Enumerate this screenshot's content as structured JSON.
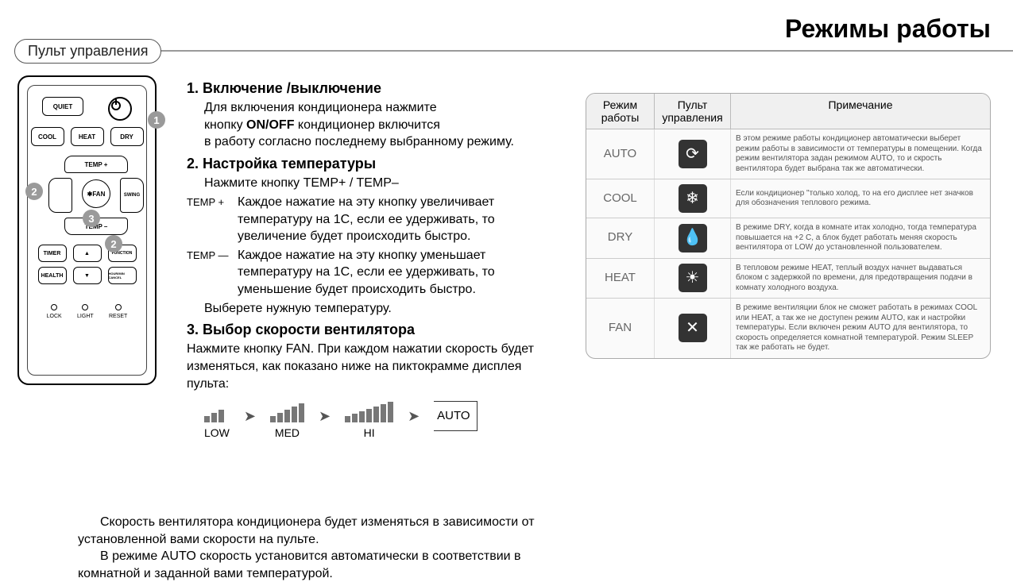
{
  "page_title": "Режимы работы",
  "section_label": "Пульт управления",
  "remote": {
    "buttons": {
      "quiet": "QUIET",
      "cool": "COOL",
      "heat": "HEAT",
      "dry": "DRY",
      "temp_plus": "TEMP +",
      "temp_minus": "TEMP –",
      "fan": "✱FAN",
      "swing": "SWING",
      "timer": "TIMER",
      "function": "FUNCTION",
      "health": "HEALTH",
      "cancel": "HOUR/MIN CANCEL",
      "up": "▲",
      "down": "▼"
    },
    "small": {
      "lock": "LOCK",
      "light": "LIGHT",
      "reset": "RESET"
    },
    "callouts": {
      "c1": "1",
      "c2a": "2",
      "c2b": "2",
      "c3": "3"
    }
  },
  "instructions": {
    "s1_title": "1.  Включение /выключение",
    "s1_l1": "Для включения кондиционера нажмите",
    "s1_l2a": "кнопку  ",
    "s1_onoff": "ON/OFF",
    "s1_l2b": "  кондиционер включится",
    "s1_l3": "в работу согласно последнему выбранному режиму.",
    "s2_title": "2.  Настройка температуры",
    "s2_l1": "Нажмите кнопку TEMP+ / TEMP–",
    "s2_plus_lbl": "TEMP +",
    "s2_plus_txt": "Каждое нажатие на эту кнопку увеличивает температуру на 1С, если ее удерживать, то увеличение будет происходить быстро.",
    "s2_minus_lbl": "TEMP —",
    "s2_minus_txt": "Каждое нажатие на эту кнопку уменьшает температуру на 1С, если ее удерживать, то уменьшение будет происходить быстро.",
    "s2_last": "Выберете нужную температуру.",
    "s3_title": "3.  Выбор скорости вентилятора",
    "s3_body": "Нажмите кнопку FAN. При каждом нажатии скорость будет изменяться, как показано ниже на пиктокрамме дисплея пульта:",
    "fan": {
      "low": "LOW",
      "med": "MED",
      "hi": "HI",
      "auto": "AUTO"
    },
    "bottom1": "Скорость вентилятора кондиционера будет изменяться в зависимости от установленной вами скорости на пульте.",
    "bottom2": "В режиме AUTO скорость установится автоматически в соответствии в комнатной и заданной вами температурой."
  },
  "mode_table": {
    "headers": {
      "c1": "Режим работы",
      "c2": "Пульт управления",
      "c3": "Примечание"
    },
    "rows": [
      {
        "mode": "AUTO",
        "icon": "⟳",
        "note": "В этом режиме работы кондиционер автоматически выберет режим работы в зависимости от температуры в помещении. Когда режим вентилятора задан режимом AUTO, то и скрость вентилятора будет выбрана так же автоматически."
      },
      {
        "mode": "COOL",
        "icon": "❄",
        "note": "Если кондиционер \"только холод, то на его дисплее нет значков для обозначения теплового режима."
      },
      {
        "mode": "DRY",
        "icon": "💧",
        "note": "В режиме DRY, когда в комнате итак холодно, тогда температура повышается на +2 С, а блок будет работать меняя скорость вентилятора от LOW до установленной пользователем."
      },
      {
        "mode": "HEAT",
        "icon": "☀",
        "note": "В тепловом режиме HEAT, теплый воздух начнет выдаваться блоком с задержкой по времени, для предотвращения подачи в комнату холодного воздуха."
      },
      {
        "mode": "FAN",
        "icon": "✕",
        "note": "В режиме вентиляции блок не сможет работать в режимах COOL или HEAT, а так же не доступен режим AUTO, как и настройки температуры. Если включен режим AUTO для вентилятора, то скорость определяется комнатной температурой. Режим SLEEP так же работать не будет."
      }
    ]
  },
  "colors": {
    "accent_grey": "#9a9a9a",
    "icon_bg": "#333333",
    "text_muted": "#555555"
  }
}
